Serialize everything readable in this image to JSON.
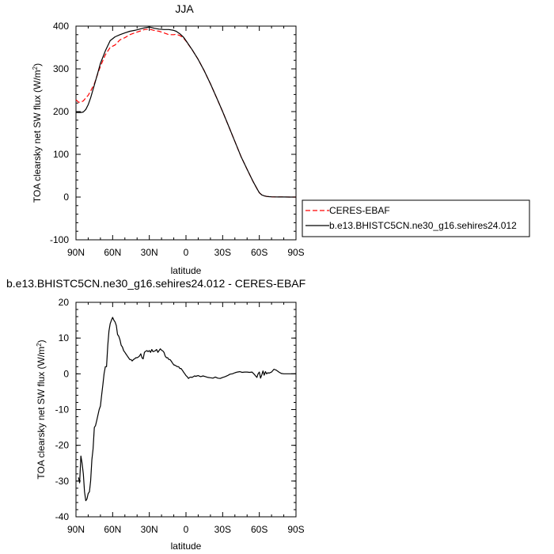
{
  "chart_data": [
    {
      "type": "line",
      "title": "JJA",
      "xlabel": "latitude",
      "ylabel_main": "TOA clearsky net SW flux (W/m",
      "ylabel_sup": "2",
      "ylabel_close": ")",
      "xlim": [
        90,
        -90
      ],
      "ylim": [
        -100,
        400
      ],
      "x_ticks": [
        90,
        60,
        30,
        0,
        -30,
        -60,
        -90
      ],
      "x_tick_labels": [
        "90N",
        "60N",
        "30N",
        "0",
        "30S",
        "60S",
        "90S"
      ],
      "y_ticks": [
        -100,
        0,
        100,
        200,
        300,
        400
      ],
      "y_tick_labels": [
        "-100",
        "0",
        "100",
        "200",
        "300",
        "400"
      ],
      "legend_position": "right",
      "series": [
        {
          "name": "CERES-EBAF",
          "color": "#ff0000",
          "dash": "dashed",
          "x": [
            90,
            88,
            86,
            84,
            82,
            80,
            78,
            75,
            72,
            70,
            66,
            62,
            58,
            54,
            50,
            46,
            42,
            38,
            34,
            30,
            26,
            22,
            18,
            14,
            10,
            8,
            5,
            2,
            0,
            -5,
            -10,
            -15,
            -20,
            -25,
            -30,
            -35,
            -40,
            -45,
            -50,
            -55,
            -58,
            -60,
            -62,
            -64,
            -66,
            -68,
            -70,
            -73,
            -76,
            -80,
            -85,
            -90
          ],
          "y": [
            228,
            222,
            222,
            225,
            232,
            238,
            248,
            265,
            290,
            306,
            333,
            350,
            356,
            368,
            373,
            380,
            384,
            388,
            392,
            393,
            390,
            388,
            384,
            380,
            380,
            381,
            378,
            372,
            365,
            345,
            322,
            295,
            265,
            233,
            200,
            165,
            130,
            95,
            65,
            36,
            20,
            10,
            5,
            3,
            1.5,
            1,
            0.5,
            0.3,
            0.2,
            0.1,
            0,
            0
          ]
        },
        {
          "name": "b.e13.BHISTC5CN.ne30_g16.sehires24.012",
          "color": "#000000",
          "dash": "solid",
          "x": [
            90,
            88,
            86,
            84,
            82,
            80,
            78,
            75,
            72,
            70,
            66,
            62,
            58,
            54,
            50,
            46,
            42,
            38,
            34,
            30,
            26,
            22,
            18,
            14,
            10,
            8,
            5,
            2,
            0,
            -5,
            -10,
            -15,
            -20,
            -25,
            -30,
            -35,
            -40,
            -45,
            -50,
            -55,
            -58,
            -60,
            -62,
            -64,
            -66,
            -68,
            -70,
            -73,
            -76,
            -80,
            -85,
            -90
          ],
          "y": [
            198,
            198,
            198,
            199,
            205,
            216,
            232,
            262,
            292,
            313,
            342,
            366,
            375,
            380,
            384,
            388,
            390,
            393,
            396,
            398,
            395,
            393,
            392,
            392,
            390,
            388,
            382,
            374,
            366,
            345,
            322,
            295,
            265,
            233,
            200,
            165,
            130,
            95,
            65,
            36,
            20,
            10,
            5,
            3,
            1.5,
            1,
            0.5,
            0.3,
            0.2,
            0.1,
            0,
            0
          ]
        }
      ]
    },
    {
      "type": "line",
      "title": "b.e13.BHISTC5CN.ne30_g16.sehires24.012 - CERES-EBAF",
      "xlabel": "latitude",
      "ylabel_main": "TOA clearsky net SW flux (W/m",
      "ylabel_sup": "2",
      "ylabel_close": ")",
      "xlim": [
        90,
        -90
      ],
      "ylim": [
        -40,
        20
      ],
      "x_ticks": [
        90,
        60,
        30,
        0,
        -30,
        -60,
        -90
      ],
      "x_tick_labels": [
        "90N",
        "60N",
        "30N",
        "0",
        "30S",
        "60S",
        "90S"
      ],
      "y_ticks": [
        -40,
        -30,
        -20,
        -10,
        0,
        10,
        20
      ],
      "y_tick_labels": [
        "-40",
        "-30",
        "-20",
        "-10",
        "0",
        "10",
        "20"
      ],
      "series": [
        {
          "color": "#000000",
          "dash": "solid",
          "x": [
            88,
            87,
            86,
            85,
            84,
            83,
            82,
            81,
            80,
            79,
            78,
            77,
            76,
            75,
            74,
            73,
            72,
            71,
            70,
            69,
            68,
            67,
            66,
            65,
            64,
            63,
            62,
            61,
            60,
            59,
            58,
            57,
            56,
            55,
            54,
            53,
            52,
            51,
            50,
            49,
            48,
            47,
            46,
            45,
            44,
            43,
            42,
            41,
            40,
            39,
            38,
            37,
            36,
            35,
            34,
            33,
            32,
            31,
            30,
            29,
            28,
            27,
            26,
            25,
            24,
            23,
            22,
            21,
            20,
            19,
            18,
            17,
            16,
            15,
            14,
            13,
            12,
            11,
            10,
            9,
            8,
            7,
            6,
            5,
            4,
            3,
            2,
            1,
            0,
            -1,
            -2,
            -3,
            -4,
            -5,
            -6,
            -7,
            -8,
            -9,
            -10,
            -12,
            -14,
            -16,
            -18,
            -20,
            -22,
            -24,
            -26,
            -28,
            -30,
            -32,
            -34,
            -36,
            -38,
            -40,
            -42,
            -44,
            -46,
            -48,
            -50,
            -52,
            -54,
            -56,
            -58,
            -59,
            -60,
            -61,
            -62,
            -63,
            -64,
            -65,
            -66,
            -67,
            -68,
            -70,
            -72,
            -74,
            -76,
            -78,
            -80,
            -82,
            -84,
            -86,
            -88,
            -90
          ],
          "y": [
            -29,
            -30.5,
            -23,
            -25,
            -28,
            -33,
            -35.5,
            -35,
            -33.5,
            -33,
            -30,
            -24,
            -21,
            -15,
            -14.5,
            -13,
            -11.5,
            -10,
            -9,
            -6,
            -3,
            0,
            2,
            2,
            8,
            12,
            14,
            15,
            15.8,
            15,
            14.5,
            13.5,
            11,
            10.5,
            9.5,
            8,
            7.5,
            6.5,
            6,
            5.5,
            5,
            4.5,
            4,
            4,
            3.6,
            4,
            4.2,
            4.5,
            4.5,
            4.7,
            5,
            5.6,
            4.5,
            4.2,
            6,
            6.3,
            6.5,
            6.2,
            6.5,
            6,
            6.8,
            6.2,
            6.3,
            6.5,
            6.8,
            6,
            6.5,
            7,
            6.6,
            6.4,
            6,
            5,
            4.5,
            4.5,
            4,
            4,
            3.5,
            3,
            2.5,
            2.4,
            2.2,
            2,
            2,
            1.5,
            1.5,
            1,
            0.5,
            0,
            -0.5,
            -0.8,
            -1.3,
            -1,
            -0.9,
            -1,
            -0.8,
            -0.6,
            -0.7,
            -0.6,
            -0.5,
            -0.8,
            -0.6,
            -0.8,
            -1,
            -1.1,
            -1.2,
            -0.9,
            -1.2,
            -1.3,
            -1,
            -0.8,
            -0.5,
            -0.1,
            0,
            0.3,
            0.5,
            0.6,
            0.4,
            0.5,
            0.5,
            0.4,
            0.5,
            -0.2,
            -1,
            0,
            0.5,
            -1.2,
            -0.3,
            0.8,
            -0.4,
            0.6,
            0,
            0.3,
            0.2,
            0.5,
            1.3,
            1,
            0.5,
            0.1,
            0,
            0,
            0,
            0,
            0,
            0
          ]
        }
      ]
    }
  ]
}
